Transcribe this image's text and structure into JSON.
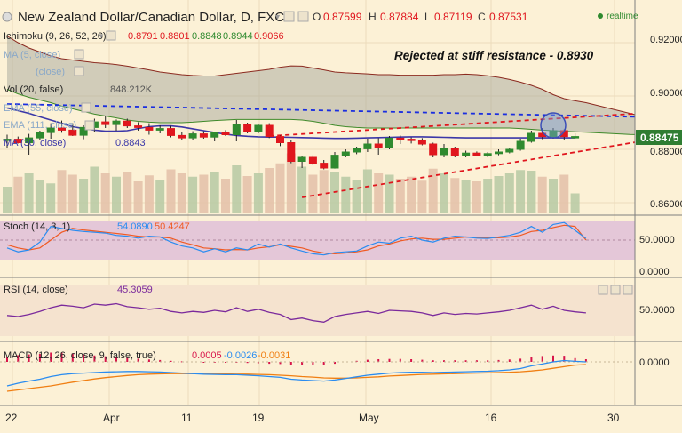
{
  "header": {
    "symbol_title": "New Zealand Dollar/Canadian Dollar, D, FXCM",
    "ohlc": [
      {
        "label": "O",
        "value": "0.87599"
      },
      {
        "label": "H",
        "value": "0.87884"
      },
      {
        "label": "L",
        "value": "0.87119"
      },
      {
        "label": "C",
        "value": "0.87531"
      }
    ],
    "realtime_label": "realtime"
  },
  "legend": {
    "ichimoku_label": "Ichimoku (9, 26, 52, 26)",
    "ichimoku_values": [
      "0.8791",
      "0.8801",
      "0.8848",
      "0.8944",
      "0.9066"
    ],
    "ma5_label": "MA (5, close)",
    "hidden_row_label": "(close)",
    "vol_label": "Vol (20, false)",
    "vol_value": "848.212K",
    "ema55_label": "EMA (55, close)",
    "ema111_label": "EMA (111, close)",
    "ema_last_label": "MA (30, close)",
    "ema_last_value": "0.8843"
  },
  "annotation": "Rejected at stiff resistance - 0.8930",
  "price_axis": {
    "ticks": [
      "0.92000",
      "0.90000",
      "0.88000",
      "0.86000"
    ],
    "current_price": "0.88475"
  },
  "stoch": {
    "label": "Stoch (14, 3, 1)",
    "k_value": "54.0890",
    "d_value": "50.4247",
    "ticks": [
      "50.0000",
      "0.0000"
    ]
  },
  "rsi": {
    "label": "RSI (14, close)",
    "value": "45.3059",
    "ticks": [
      "50.0000"
    ]
  },
  "macd": {
    "label": "MACD (12, 26, close, 9, false, true)",
    "hist_value": "0.0005",
    "macd_value": "-0.0026",
    "signal_value": "-0.0031",
    "ticks": [
      "0.0000"
    ]
  },
  "time_axis": {
    "labels": [
      "22",
      "Apr",
      "11",
      "19",
      "May",
      "16",
      "30"
    ]
  },
  "colors": {
    "background": "#fcf1d6",
    "bull": "#2f8a2f",
    "bear": "#e0161e",
    "ema": "#3b37a8",
    "trend_blue": "#1a2ee0",
    "trend_red": "#e0161e",
    "cloud": "#a5a89b",
    "stoch_k": "#2a8cf0",
    "stoch_d": "#f05a23",
    "rsi": "#7b2a9c",
    "macd": "#2a8cf0",
    "signal": "#f07f13",
    "hist": "#d8154a"
  },
  "chart_data": [
    {
      "type": "candlestick",
      "title": "New Zealand Dollar/Canadian Dollar, D, FXCM",
      "x_start_label": "22",
      "ylim": [
        0.856,
        0.928
      ],
      "grid": true,
      "candles": [
        [
          0.8835,
          0.8855,
          0.8805,
          0.8838
        ],
        [
          0.8838,
          0.8848,
          0.8822,
          0.8825
        ],
        [
          0.8825,
          0.8858,
          0.878,
          0.8843
        ],
        [
          0.8843,
          0.887,
          0.8835,
          0.8863
        ],
        [
          0.8863,
          0.8898,
          0.884,
          0.888
        ],
        [
          0.888,
          0.8908,
          0.8862,
          0.8872
        ],
        [
          0.8872,
          0.8898,
          0.885,
          0.8853
        ],
        [
          0.8853,
          0.889,
          0.8838,
          0.8882
        ],
        [
          0.8882,
          0.8915,
          0.8865,
          0.8903
        ],
        [
          0.8903,
          0.8925,
          0.888,
          0.8893
        ],
        [
          0.8893,
          0.8912,
          0.887,
          0.8906
        ],
        [
          0.8906,
          0.8915,
          0.888,
          0.8888
        ],
        [
          0.8888,
          0.8902,
          0.887,
          0.8882
        ],
        [
          0.8882,
          0.8898,
          0.8855,
          0.8872
        ],
        [
          0.8872,
          0.889,
          0.886,
          0.8878
        ],
        [
          0.8878,
          0.8888,
          0.8845,
          0.8852
        ],
        [
          0.8852,
          0.8865,
          0.8835,
          0.8843
        ],
        [
          0.8843,
          0.8868,
          0.8835,
          0.8858
        ],
        [
          0.8858,
          0.8868,
          0.884,
          0.8846
        ],
        [
          0.8846,
          0.8865,
          0.883,
          0.8862
        ],
        [
          0.8862,
          0.8872,
          0.885,
          0.8855
        ],
        [
          0.8855,
          0.891,
          0.883,
          0.8895
        ],
        [
          0.8895,
          0.89,
          0.886,
          0.8867
        ],
        [
          0.8867,
          0.8895,
          0.886,
          0.889
        ],
        [
          0.889,
          0.8898,
          0.8842,
          0.8848
        ],
        [
          0.8848,
          0.8852,
          0.8812,
          0.8825
        ],
        [
          0.8825,
          0.8835,
          0.8748,
          0.8755
        ],
        [
          0.8755,
          0.8775,
          0.873,
          0.877
        ],
        [
          0.877,
          0.8778,
          0.874,
          0.8748
        ],
        [
          0.8748,
          0.876,
          0.8725,
          0.873
        ],
        [
          0.873,
          0.879,
          0.8728,
          0.8778
        ],
        [
          0.8778,
          0.88,
          0.877,
          0.879
        ],
        [
          0.879,
          0.881,
          0.8782,
          0.8802
        ],
        [
          0.8802,
          0.884,
          0.879,
          0.882
        ],
        [
          0.882,
          0.8842,
          0.878,
          0.8808
        ],
        [
          0.8808,
          0.885,
          0.88,
          0.8842
        ],
        [
          0.8842,
          0.8852,
          0.882,
          0.8838
        ],
        [
          0.8838,
          0.8845,
          0.8822,
          0.8835
        ],
        [
          0.8835,
          0.8842,
          0.8815,
          0.882
        ],
        [
          0.882,
          0.8825,
          0.877,
          0.878
        ],
        [
          0.878,
          0.882,
          0.877,
          0.8803
        ],
        [
          0.8803,
          0.881,
          0.877,
          0.8778
        ],
        [
          0.8778,
          0.8795,
          0.877,
          0.8786
        ],
        [
          0.8786,
          0.8792,
          0.8776,
          0.8778
        ],
        [
          0.8778,
          0.879,
          0.877,
          0.8784
        ],
        [
          0.8784,
          0.88,
          0.8778,
          0.879
        ],
        [
          0.879,
          0.8805,
          0.8785,
          0.88
        ],
        [
          0.88,
          0.884,
          0.8795,
          0.883
        ],
        [
          0.883,
          0.887,
          0.8825,
          0.886
        ],
        [
          0.886,
          0.888,
          0.8838,
          0.8848
        ],
        [
          0.8848,
          0.888,
          0.884,
          0.887
        ],
        [
          0.887,
          0.8875,
          0.8835,
          0.8848
        ],
        [
          0.8848,
          0.886,
          0.884,
          0.8848
        ]
      ],
      "volume": [
        40,
        55,
        60,
        50,
        45,
        65,
        58,
        52,
        70,
        60,
        55,
        62,
        48,
        57,
        50,
        66,
        60,
        55,
        58,
        62,
        52,
        72,
        56,
        60,
        68,
        75,
        90,
        70,
        58,
        65,
        62,
        55,
        50,
        66,
        60,
        58,
        52,
        55,
        49,
        67,
        60,
        53,
        50,
        48,
        52,
        56,
        60,
        65,
        64,
        55,
        52,
        58,
        30
      ],
      "ema": [
        0.8955,
        0.8945,
        0.8935,
        0.8922,
        0.891,
        0.8898,
        0.8885,
        0.8878,
        0.8872,
        0.8868,
        0.8868,
        0.887,
        0.8878,
        0.8885,
        0.8888,
        0.8888,
        0.8884,
        0.8877,
        0.887,
        0.8863,
        0.8857,
        0.8852,
        0.8849,
        0.8847,
        0.8846,
        0.8846,
        0.8845,
        0.8844,
        0.8843,
        0.8842,
        0.8841,
        0.8841,
        0.8842,
        0.8843,
        0.8844,
        0.8845,
        0.8846,
        0.8847,
        0.8847,
        0.8846,
        0.8845,
        0.8844,
        0.8843,
        0.8843,
        0.8843,
        0.8843,
        0.8843,
        0.8843,
        0.8843,
        0.8843,
        0.8843,
        0.8843,
        0.8843
      ],
      "cloud_upper": [
        0.9225,
        0.92,
        0.918,
        0.9165,
        0.915,
        0.914,
        0.9135,
        0.913,
        0.9125,
        0.9122,
        0.9118,
        0.9112,
        0.9105,
        0.9098,
        0.909,
        0.9085,
        0.908,
        0.9077,
        0.9075,
        0.9075,
        0.908,
        0.9085,
        0.909,
        0.9095,
        0.91,
        0.9108,
        0.9113,
        0.9112,
        0.9105,
        0.9098,
        0.909,
        0.9087,
        0.9085,
        0.9083,
        0.908,
        0.908,
        0.9078,
        0.9078,
        0.9078,
        0.9078,
        0.908,
        0.908,
        0.9082,
        0.908,
        0.9076,
        0.907,
        0.9062,
        0.9052,
        0.904,
        0.9025,
        0.9005,
        0.899,
        0.8982,
        0.8975,
        0.8965,
        0.8955,
        0.8945,
        0.8935,
        0.8925
      ],
      "cloud_lower": [
        0.9025,
        0.9008,
        0.8995,
        0.8985,
        0.8975,
        0.8962,
        0.8952,
        0.8942,
        0.8932,
        0.8925,
        0.8918,
        0.891,
        0.8905,
        0.8902,
        0.89,
        0.89,
        0.89,
        0.8902,
        0.8905,
        0.8908,
        0.891,
        0.8912,
        0.8912,
        0.8912,
        0.8912,
        0.8912,
        0.8912,
        0.891,
        0.8905,
        0.8898,
        0.889,
        0.8885,
        0.8882,
        0.888,
        0.888,
        0.888,
        0.888,
        0.888,
        0.888,
        0.888,
        0.888,
        0.888,
        0.888,
        0.888,
        0.888,
        0.888,
        0.888,
        0.8878,
        0.8875,
        0.8872,
        0.887,
        0.8868,
        0.8866,
        0.8864,
        0.8862,
        0.886,
        0.8858,
        0.8856,
        0.8855
      ],
      "trendlines": [
        {
          "name": "resistance",
          "color": "blue",
          "from": [
            0,
            0.897
          ],
          "to": [
            60,
            0.892
          ]
        },
        {
          "name": "channel-top",
          "color": "red",
          "from": [
            24,
            0.885
          ],
          "to": [
            58,
            0.8935
          ]
        },
        {
          "name": "channel-bottom",
          "color": "red",
          "from": [
            27,
            0.862
          ],
          "to": [
            58,
            0.883
          ]
        }
      ],
      "marker": {
        "index": 50,
        "price": 0.887
      }
    },
    {
      "type": "line",
      "title": "Stoch (14, 3, 1)",
      "ylim": [
        0,
        100
      ],
      "series": [
        {
          "name": "%K",
          "values": [
            30,
            20,
            25,
            45,
            85,
            80,
            75,
            72,
            70,
            68,
            62,
            60,
            55,
            60,
            58,
            45,
            35,
            30,
            20,
            28,
            20,
            30,
            25,
            40,
            32,
            40,
            30,
            22,
            15,
            12,
            18,
            20,
            22,
            35,
            45,
            42,
            55,
            60,
            50,
            45,
            55,
            60,
            58,
            55,
            54,
            58,
            62,
            70,
            85,
            70,
            90,
            95,
            75,
            54
          ]
        },
        {
          "name": "%D",
          "values": [
            38,
            30,
            25,
            30,
            50,
            70,
            80,
            76,
            73,
            70,
            67,
            64,
            60,
            58,
            58,
            55,
            45,
            38,
            30,
            28,
            25,
            26,
            25,
            30,
            33,
            38,
            34,
            30,
            22,
            17,
            15,
            17,
            20,
            25,
            35,
            40,
            48,
            53,
            55,
            52,
            52,
            55,
            58,
            57,
            56,
            56,
            58,
            62,
            72,
            75,
            82,
            88,
            85,
            50
          ]
        }
      ]
    },
    {
      "type": "line",
      "title": "RSI (14, close)",
      "ylim": [
        0,
        100
      ],
      "series": [
        {
          "name": "RSI",
          "values": [
            40,
            38,
            42,
            48,
            55,
            60,
            58,
            55,
            62,
            60,
            63,
            57,
            55,
            52,
            54,
            48,
            45,
            48,
            46,
            50,
            47,
            55,
            48,
            52,
            46,
            42,
            32,
            35,
            30,
            27,
            38,
            42,
            45,
            48,
            44,
            50,
            49,
            48,
            45,
            40,
            45,
            42,
            44,
            43,
            45,
            47,
            50,
            55,
            60,
            52,
            58,
            50,
            47,
            45
          ]
        }
      ]
    },
    {
      "type": "line",
      "title": "MACD (12, 26, close, 9, false, true)",
      "ylim": [
        -0.012,
        0.006
      ],
      "series": [
        {
          "name": "MACD",
          "values": [
            -0.009,
            -0.008,
            -0.0072,
            -0.0065,
            -0.0055,
            -0.0048,
            -0.0044,
            -0.0042,
            -0.004,
            -0.0038,
            -0.0037,
            -0.0036,
            -0.0036,
            -0.0037,
            -0.0038,
            -0.004,
            -0.0042,
            -0.0044,
            -0.0046,
            -0.0047,
            -0.0048,
            -0.0048,
            -0.005,
            -0.0052,
            -0.0055,
            -0.0058,
            -0.0065,
            -0.0068,
            -0.007,
            -0.0072,
            -0.0068,
            -0.0062,
            -0.0056,
            -0.005,
            -0.0046,
            -0.0042,
            -0.004,
            -0.0039,
            -0.0039,
            -0.004,
            -0.0039,
            -0.0038,
            -0.0037,
            -0.0036,
            -0.0035,
            -0.0033,
            -0.003,
            -0.0025,
            -0.0015,
            -0.0008,
            0.0,
            0.0005,
            0.0002,
            0.0
          ]
        },
        {
          "name": "Signal",
          "values": [
            -0.011,
            -0.0105,
            -0.01,
            -0.0095,
            -0.009,
            -0.0083,
            -0.0076,
            -0.007,
            -0.0064,
            -0.0059,
            -0.0055,
            -0.0051,
            -0.0048,
            -0.0046,
            -0.0045,
            -0.0044,
            -0.0044,
            -0.0044,
            -0.0044,
            -0.0045,
            -0.0045,
            -0.0046,
            -0.0046,
            -0.0047,
            -0.0048,
            -0.005,
            -0.0052,
            -0.0055,
            -0.0057,
            -0.006,
            -0.0061,
            -0.0061,
            -0.006,
            -0.0058,
            -0.0056,
            -0.0053,
            -0.0051,
            -0.0049,
            -0.0047,
            -0.0046,
            -0.0045,
            -0.0044,
            -0.0043,
            -0.0042,
            -0.0041,
            -0.004,
            -0.0039,
            -0.0037,
            -0.0034,
            -0.003,
            -0.0024,
            -0.0018,
            -0.0012,
            -0.001
          ]
        }
      ]
    }
  ]
}
